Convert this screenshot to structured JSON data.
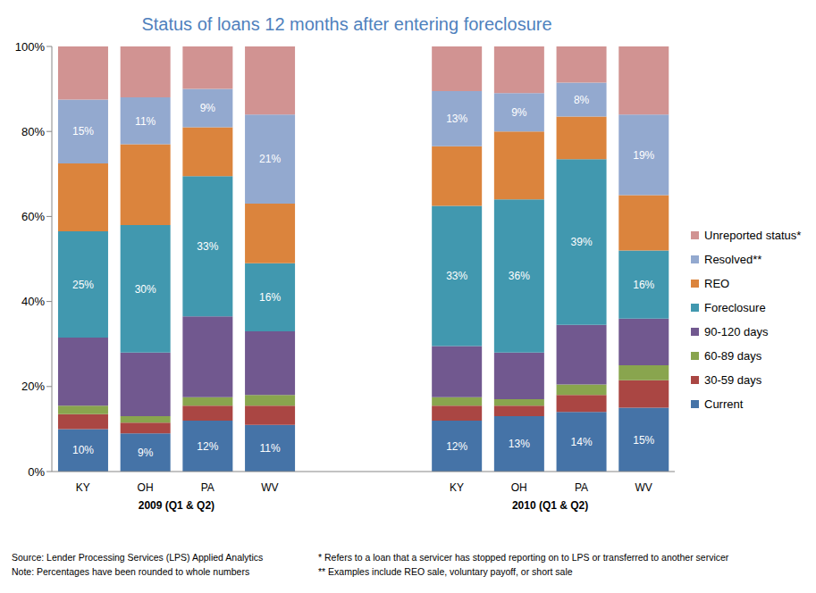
{
  "chart_data": {
    "type": "bar",
    "title": "Status of loans 12 months after entering foreclosure",
    "stacked": true,
    "grid": false,
    "legend": "right",
    "categories": [
      "KY",
      "OH",
      "PA",
      "WV",
      null,
      null,
      "KY",
      "OH",
      "PA",
      "WV"
    ],
    "group_labels": [
      "2009 (Q1 & Q2)",
      "2010 (Q1 & Q2)"
    ],
    "ylim": [
      0,
      100
    ],
    "yticks": [
      {
        "value": 0,
        "label": "0%"
      },
      {
        "value": 20,
        "label": "20%"
      },
      {
        "value": 40,
        "label": "40%"
      },
      {
        "value": 60,
        "label": "60%"
      },
      {
        "value": 80,
        "label": "80%"
      },
      {
        "value": 100,
        "label": "100%"
      }
    ],
    "series": [
      {
        "name": "Current",
        "color": "#4573a7",
        "data_labels": true,
        "values": [
          10,
          9,
          12,
          11,
          null,
          null,
          12,
          13,
          14,
          15
        ],
        "value_labels": [
          "10%",
          "9%",
          "12%",
          "11%",
          null,
          null,
          "12%",
          "13%",
          "14%",
          "15%"
        ]
      },
      {
        "name": "30-59 days",
        "color": "#aa4643",
        "values": [
          3.5,
          2.5,
          3.5,
          4.5,
          null,
          null,
          3.5,
          2.5,
          4,
          6.5
        ]
      },
      {
        "name": "60-89 days",
        "color": "#89a54e",
        "values": [
          2,
          1.5,
          2,
          2.5,
          null,
          null,
          2,
          1.5,
          2.5,
          3.5
        ]
      },
      {
        "name": "90-120 days",
        "color": "#71588f",
        "values": [
          16,
          15,
          19,
          15,
          null,
          null,
          12,
          11,
          14,
          11
        ]
      },
      {
        "name": "Foreclosure",
        "color": "#4198af",
        "data_labels": true,
        "values": [
          25,
          30,
          33,
          16,
          null,
          null,
          33,
          36,
          39,
          16
        ],
        "value_labels": [
          "25%",
          "30%",
          "33%",
          "16%",
          null,
          null,
          "33%",
          "36%",
          "39%",
          "16%"
        ]
      },
      {
        "name": "REO",
        "color": "#db843d",
        "values": [
          16,
          19,
          11.5,
          14,
          null,
          null,
          14,
          16,
          10,
          13
        ]
      },
      {
        "name": "Resolved**",
        "color": "#93a9cf",
        "data_labels": true,
        "values": [
          15,
          11,
          9,
          21,
          null,
          null,
          13,
          9,
          8,
          19
        ],
        "value_labels": [
          "15%",
          "11%",
          "9%",
          "21%",
          null,
          null,
          "13%",
          "9%",
          "8%",
          "19%"
        ]
      },
      {
        "name": "Unreported status*",
        "color": "#d19392",
        "values": [
          12.5,
          12,
          10,
          16,
          null,
          null,
          10.5,
          11,
          8.5,
          16
        ]
      }
    ],
    "annotations": [
      [
        "Source: Lender Processing Services (LPS) Applied Analytics",
        "Note: Percentages have been rounded to whole numbers"
      ],
      [
        "* Refers to a loan that a servicer has stopped reporting on to LPS or transferred to another servicer",
        "** Examples include REO sale, voluntary payoff, or short sale"
      ]
    ]
  }
}
